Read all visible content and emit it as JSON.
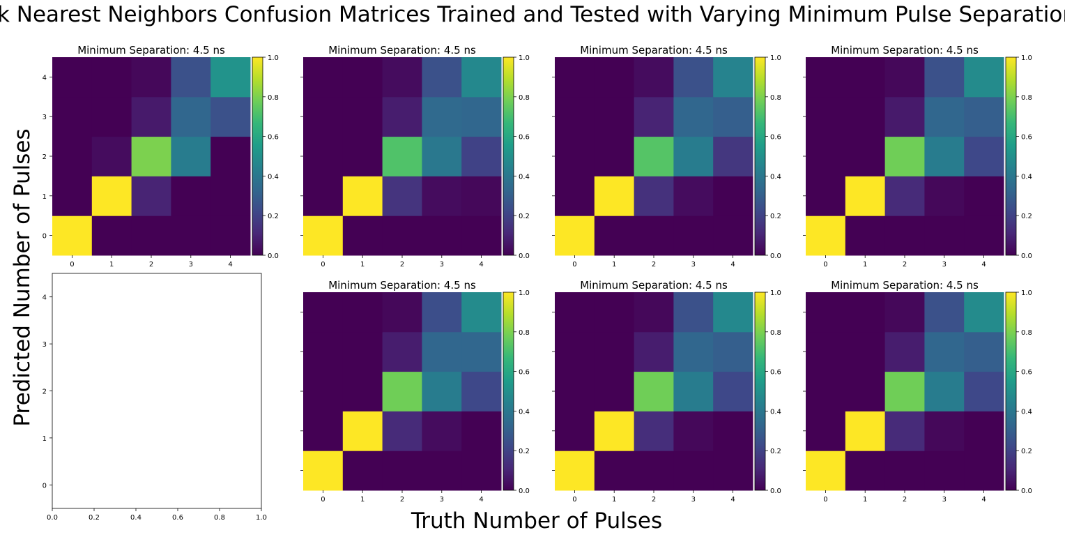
{
  "figure": {
    "title": "k Nearest Neighbors Confusion Matrices Trained and Tested with Varying Minimum Pulse Separation",
    "xlabel": "Truth Number of Pulses",
    "ylabel": "Predicted Number of Pulses"
  },
  "colormap": {
    "name": "viridis",
    "stops": [
      "#440154",
      "#482878",
      "#3e4989",
      "#31688e",
      "#26828e",
      "#1f9e89",
      "#35b779",
      "#6ece58",
      "#b5de2b",
      "#fde725"
    ]
  },
  "chart_data": [
    {
      "type": "heatmap",
      "title": "Minimum Separation: 4.5 ns",
      "x_ticks": [
        "0",
        "1",
        "2",
        "3",
        "4"
      ],
      "y_ticks": [
        "0",
        "1",
        "2",
        "3",
        "4"
      ],
      "colorbar_range": [
        0.0,
        1.0
      ],
      "colorbar_ticks": [
        "0.0",
        "0.2",
        "0.4",
        "0.6",
        "0.8",
        "1.0"
      ],
      "matrix": [
        [
          1.0,
          0.0,
          0.0,
          0.0,
          0.0
        ],
        [
          0.0,
          1.0,
          0.1,
          0.0,
          0.0
        ],
        [
          0.0,
          0.03,
          0.8,
          0.42,
          0.0
        ],
        [
          0.0,
          0.0,
          0.07,
          0.33,
          0.25
        ],
        [
          0.0,
          0.0,
          0.02,
          0.25,
          0.51
        ]
      ]
    },
    {
      "type": "heatmap",
      "title": "Minimum Separation: 4.5 ns",
      "x_ticks": [
        "0",
        "1",
        "2",
        "3",
        "4"
      ],
      "y_ticks": [
        "0",
        "1",
        "2",
        "3",
        "4"
      ],
      "colorbar_range": [
        0.0,
        1.0
      ],
      "colorbar_ticks": [
        "0.0",
        "0.2",
        "0.4",
        "0.6",
        "0.8",
        "1.0"
      ],
      "matrix": [
        [
          1.0,
          0.0,
          0.0,
          0.0,
          0.0
        ],
        [
          0.0,
          1.0,
          0.15,
          0.03,
          0.02
        ],
        [
          0.0,
          0.0,
          0.72,
          0.4,
          0.2
        ],
        [
          0.0,
          0.0,
          0.08,
          0.34,
          0.33
        ],
        [
          0.0,
          0.0,
          0.03,
          0.25,
          0.47
        ]
      ]
    },
    {
      "type": "heatmap",
      "title": "Minimum Separation: 4.5 ns",
      "x_ticks": [
        "0",
        "1",
        "2",
        "3",
        "4"
      ],
      "y_ticks": [
        "0",
        "1",
        "2",
        "3",
        "4"
      ],
      "colorbar_range": [
        0.0,
        1.0
      ],
      "colorbar_ticks": [
        "0.0",
        "0.2",
        "0.4",
        "0.6",
        "0.8",
        "1.0"
      ],
      "matrix": [
        [
          1.0,
          0.0,
          0.0,
          0.0,
          0.0
        ],
        [
          0.0,
          1.0,
          0.14,
          0.03,
          0.0
        ],
        [
          0.0,
          0.0,
          0.73,
          0.42,
          0.16
        ],
        [
          0.0,
          0.0,
          0.1,
          0.33,
          0.3
        ],
        [
          0.0,
          0.0,
          0.03,
          0.25,
          0.45
        ]
      ]
    },
    {
      "type": "heatmap",
      "title": "Minimum Separation: 4.5 ns",
      "x_ticks": [
        "0",
        "1",
        "2",
        "3",
        "4"
      ],
      "y_ticks": [
        "0",
        "1",
        "2",
        "3",
        "4"
      ],
      "colorbar_range": [
        0.0,
        1.0
      ],
      "colorbar_ticks": [
        "0.0",
        "0.2",
        "0.4",
        "0.6",
        "0.8",
        "1.0"
      ],
      "matrix": [
        [
          1.0,
          0.0,
          0.0,
          0.0,
          0.0
        ],
        [
          0.0,
          1.0,
          0.12,
          0.02,
          0.0
        ],
        [
          0.0,
          0.0,
          0.78,
          0.42,
          0.22
        ],
        [
          0.0,
          0.0,
          0.07,
          0.33,
          0.3
        ],
        [
          0.0,
          0.0,
          0.02,
          0.25,
          0.48
        ]
      ]
    },
    {
      "type": "empty",
      "x_ticks": [
        "0.0",
        "0.2",
        "0.4",
        "0.6",
        "0.8",
        "1.0"
      ],
      "y_ticks": [
        "0",
        "1",
        "2",
        "3",
        "4"
      ],
      "xlim": [
        0,
        1
      ],
      "ylim": [
        -0.5,
        4.5
      ]
    },
    {
      "type": "heatmap",
      "title": "Minimum Separation: 4.5 ns",
      "x_ticks": [
        "0",
        "1",
        "2",
        "3",
        "4"
      ],
      "y_ticks": [
        "0",
        "1",
        "2",
        "3",
        "4"
      ],
      "colorbar_range": [
        0.0,
        1.0
      ],
      "colorbar_ticks": [
        "0.0",
        "0.2",
        "0.4",
        "0.6",
        "0.8",
        "1.0"
      ],
      "matrix": [
        [
          1.0,
          0.0,
          0.0,
          0.0,
          0.0
        ],
        [
          0.0,
          1.0,
          0.12,
          0.03,
          0.0
        ],
        [
          0.0,
          0.0,
          0.78,
          0.42,
          0.22
        ],
        [
          0.0,
          0.0,
          0.08,
          0.33,
          0.33
        ],
        [
          0.0,
          0.0,
          0.02,
          0.24,
          0.48
        ]
      ]
    },
    {
      "type": "heatmap",
      "title": "Minimum Separation: 4.5 ns",
      "x_ticks": [
        "0",
        "1",
        "2",
        "3",
        "4"
      ],
      "y_ticks": [
        "0",
        "1",
        "2",
        "3",
        "4"
      ],
      "colorbar_range": [
        0.0,
        1.0
      ],
      "colorbar_ticks": [
        "0.0",
        "0.2",
        "0.4",
        "0.6",
        "0.8",
        "1.0"
      ],
      "matrix": [
        [
          1.0,
          0.0,
          0.0,
          0.0,
          0.0
        ],
        [
          0.0,
          1.0,
          0.13,
          0.02,
          0.0
        ],
        [
          0.0,
          0.0,
          0.78,
          0.42,
          0.22
        ],
        [
          0.0,
          0.0,
          0.08,
          0.33,
          0.3
        ],
        [
          0.0,
          0.0,
          0.02,
          0.25,
          0.47
        ]
      ]
    },
    {
      "type": "heatmap",
      "title": "Minimum Separation: 4.5 ns",
      "x_ticks": [
        "0",
        "1",
        "2",
        "3",
        "4"
      ],
      "y_ticks": [
        "0",
        "1",
        "2",
        "3",
        "4"
      ],
      "colorbar_range": [
        0.0,
        1.0
      ],
      "colorbar_ticks": [
        "0.0",
        "0.2",
        "0.4",
        "0.6",
        "0.8",
        "1.0"
      ],
      "matrix": [
        [
          1.0,
          0.0,
          0.0,
          0.0,
          0.0
        ],
        [
          0.0,
          1.0,
          0.12,
          0.02,
          0.0
        ],
        [
          0.0,
          0.0,
          0.78,
          0.42,
          0.22
        ],
        [
          0.0,
          0.0,
          0.08,
          0.33,
          0.3
        ],
        [
          0.0,
          0.0,
          0.02,
          0.25,
          0.48
        ]
      ]
    }
  ]
}
